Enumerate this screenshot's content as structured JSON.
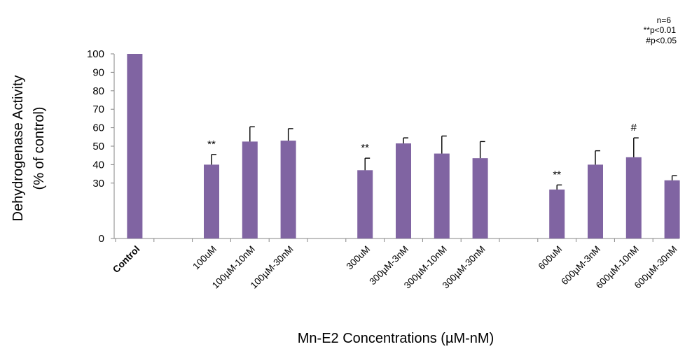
{
  "chart_data": {
    "type": "bar",
    "categories": [
      "Control",
      "100uM",
      "100µM-10nM",
      "100µM-30nM",
      "300uM",
      "300µM-3nM",
      "300µM-10nM",
      "300µM-30nM",
      "600uM",
      "600µM-3nM",
      "600µM-10nM",
      "600µM-30nM"
    ],
    "values": [
      100,
      40,
      52.5,
      53,
      37,
      51.5,
      46,
      43.5,
      26.5,
      40,
      44,
      31.5
    ],
    "errors": [
      0,
      5.5,
      8,
      6.5,
      6.5,
      3,
      9.5,
      9,
      2.5,
      7.5,
      10.5,
      2.5
    ],
    "annotations": [
      "",
      "**",
      "",
      "",
      "**",
      "",
      "",
      "",
      "**",
      "",
      "#",
      ""
    ],
    "ylabel_line1": "Dehydrogenase Activity",
    "ylabel_line2": "(% of control)",
    "xlabel": "Mn-E2 Concentrations (µM-nM)",
    "yticks": [
      "0",
      "30",
      "40",
      "50",
      "60",
      "70",
      "80",
      "90",
      "100"
    ],
    "ylim": [
      0,
      100
    ],
    "legend_notes": [
      "n=6",
      "**p<0.01",
      "#p<0.05"
    ],
    "grid": false,
    "bar_color": "#8064a2"
  }
}
